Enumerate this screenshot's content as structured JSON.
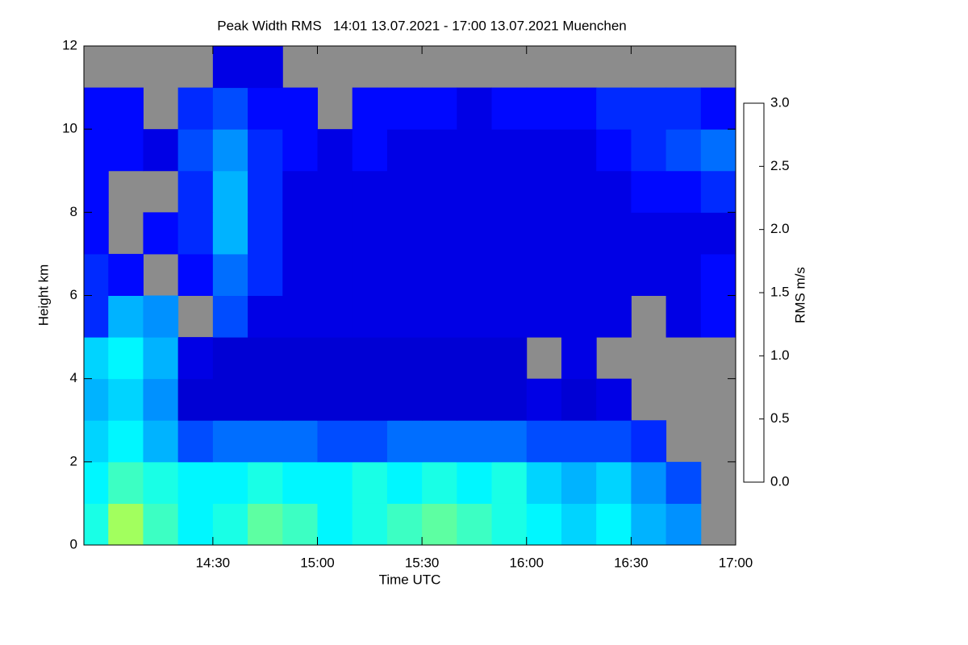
{
  "chart_data": {
    "type": "heatmap",
    "title": "Peak Width RMS   14:01 13.07.2021 - 17:00 13.07.2021 Muenchen",
    "xlabel": "Time UTC",
    "ylabel": "Height km",
    "colorbar_label": "RMS m/s",
    "colormap": "jet",
    "missing_color": "#8c8c8c",
    "x": [
      "13:53",
      "14:00",
      "14:10",
      "14:20",
      "14:30",
      "14:40",
      "14:50",
      "15:00",
      "15:10",
      "15:20",
      "15:30",
      "15:40",
      "15:50",
      "16:00",
      "16:10",
      "16:20",
      "16:30",
      "16:40",
      "16:50",
      "17:00"
    ],
    "y": [
      0,
      1,
      2,
      3,
      4,
      5,
      6,
      7,
      8,
      9,
      10,
      11,
      12
    ],
    "z": [
      [
        1.2,
        1.6,
        1.3,
        1.1,
        1.2,
        1.4,
        1.3,
        1.1,
        1.2,
        1.3,
        1.4,
        1.3,
        1.2,
        1.1,
        1.0,
        1.1,
        0.9,
        0.8,
        null
      ],
      [
        1.1,
        1.3,
        1.2,
        1.1,
        1.1,
        1.2,
        1.1,
        1.1,
        1.2,
        1.1,
        1.2,
        1.1,
        1.2,
        1.0,
        0.9,
        1.0,
        0.8,
        0.6,
        null
      ],
      [
        1.0,
        1.1,
        0.9,
        0.6,
        0.7,
        0.7,
        0.7,
        0.6,
        0.6,
        0.7,
        0.7,
        0.7,
        0.7,
        0.6,
        0.6,
        0.6,
        0.5,
        null,
        null
      ],
      [
        0.9,
        1.0,
        0.8,
        0.25,
        0.25,
        0.25,
        0.25,
        0.25,
        0.25,
        0.25,
        0.25,
        0.25,
        0.25,
        0.3,
        0.25,
        0.3,
        null,
        null,
        null
      ],
      [
        1.0,
        1.1,
        0.9,
        0.3,
        0.25,
        0.25,
        0.25,
        0.25,
        0.25,
        0.25,
        0.25,
        0.25,
        0.25,
        null,
        0.3,
        null,
        null,
        null,
        null
      ],
      [
        0.5,
        0.9,
        0.8,
        null,
        0.6,
        0.3,
        0.3,
        0.3,
        0.3,
        0.3,
        0.3,
        0.3,
        0.3,
        0.3,
        0.3,
        0.3,
        null,
        0.3,
        0.4
      ],
      [
        0.5,
        0.4,
        null,
        0.4,
        0.7,
        0.5,
        0.3,
        0.3,
        0.3,
        0.3,
        0.3,
        0.3,
        0.3,
        0.3,
        0.3,
        0.3,
        0.3,
        0.3,
        0.4
      ],
      [
        0.4,
        null,
        0.4,
        0.5,
        0.9,
        0.5,
        0.3,
        0.3,
        0.3,
        0.3,
        0.3,
        0.3,
        0.3,
        0.3,
        0.3,
        0.3,
        0.3,
        0.3,
        0.3
      ],
      [
        0.4,
        null,
        null,
        0.5,
        0.9,
        0.5,
        0.3,
        0.3,
        0.3,
        0.3,
        0.3,
        0.3,
        0.3,
        0.3,
        0.3,
        0.3,
        0.4,
        0.4,
        0.5
      ],
      [
        0.4,
        0.4,
        0.3,
        0.6,
        0.8,
        0.5,
        0.4,
        0.3,
        0.4,
        0.3,
        0.3,
        0.3,
        0.3,
        0.3,
        0.3,
        0.4,
        0.5,
        0.6,
        0.7
      ],
      [
        0.4,
        0.4,
        null,
        0.5,
        0.6,
        0.4,
        0.4,
        null,
        0.4,
        0.4,
        0.4,
        0.3,
        0.4,
        0.4,
        0.4,
        0.5,
        0.5,
        0.5,
        0.4
      ],
      [
        null,
        null,
        null,
        null,
        0.3,
        0.3,
        null,
        null,
        null,
        null,
        null,
        null,
        null,
        null,
        null,
        null,
        null,
        null,
        null
      ]
    ],
    "xlim": [
      "13:53",
      "17:00"
    ],
    "xticks": [
      "14:30",
      "15:00",
      "15:30",
      "16:00",
      "16:30",
      "17:00"
    ],
    "ylim": [
      0,
      12
    ],
    "yticks": [
      0,
      2,
      4,
      6,
      8,
      10,
      12
    ],
    "zlim": [
      0,
      3
    ],
    "zticks": [
      {
        "value": 0,
        "label": "0.0"
      },
      {
        "value": 0.5,
        "label": "0.5"
      },
      {
        "value": 1,
        "label": "1.0"
      },
      {
        "value": 1.5,
        "label": "1.5"
      },
      {
        "value": 2,
        "label": "2.0"
      },
      {
        "value": 2.5,
        "label": "2.5"
      },
      {
        "value": 3,
        "label": "3.0"
      }
    ]
  }
}
